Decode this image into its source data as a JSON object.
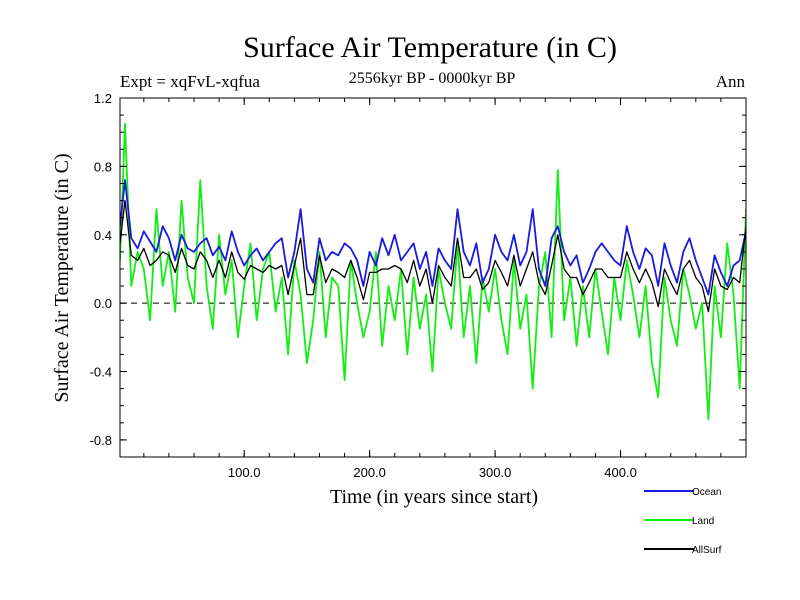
{
  "chart_data": {
    "type": "line",
    "title": "Surface Air Temperature (in C)",
    "subtitle": "2556kyr BP - 0000kyr BP",
    "left_label": "Expt = xqFvL-xqfua",
    "right_label": "Ann",
    "xlabel": "Time (in years since start)",
    "ylabel": "Surface Air Temperature (in C)",
    "xlim": [
      1,
      500
    ],
    "ylim": [
      -0.9,
      1.2
    ],
    "xticks": [
      100,
      200,
      300,
      400
    ],
    "xtick_labels": [
      "100.0",
      "200.0",
      "300.0",
      "400.0"
    ],
    "yticks": [
      -0.8,
      -0.4,
      0.0,
      0.4,
      0.8,
      1.2
    ],
    "ytick_labels": [
      "-0.8",
      "-0.4",
      "0.0",
      "0.4",
      "0.8",
      "1.2"
    ],
    "reference_line": 0.0,
    "legend_position": "bottom-right",
    "series": [
      {
        "name": "Ocean",
        "color": "#1a1adc",
        "x": [
          1,
          5,
          10,
          15,
          20,
          25,
          30,
          35,
          40,
          45,
          50,
          55,
          60,
          65,
          70,
          75,
          80,
          85,
          90,
          95,
          100,
          105,
          110,
          115,
          120,
          125,
          130,
          135,
          140,
          145,
          150,
          155,
          160,
          165,
          170,
          175,
          180,
          185,
          190,
          195,
          200,
          205,
          210,
          215,
          220,
          225,
          230,
          235,
          240,
          245,
          250,
          255,
          260,
          265,
          270,
          275,
          280,
          285,
          290,
          295,
          300,
          305,
          310,
          315,
          320,
          325,
          330,
          335,
          340,
          345,
          350,
          355,
          360,
          365,
          370,
          375,
          380,
          385,
          390,
          395,
          400,
          405,
          410,
          415,
          420,
          425,
          430,
          435,
          440,
          445,
          450,
          455,
          460,
          465,
          470,
          475,
          480,
          485,
          490,
          495,
          500
        ],
        "values": [
          0.45,
          0.72,
          0.38,
          0.32,
          0.42,
          0.36,
          0.3,
          0.45,
          0.38,
          0.25,
          0.4,
          0.32,
          0.3,
          0.35,
          0.38,
          0.28,
          0.33,
          0.25,
          0.42,
          0.3,
          0.22,
          0.28,
          0.32,
          0.25,
          0.3,
          0.35,
          0.38,
          0.15,
          0.3,
          0.55,
          0.2,
          0.12,
          0.38,
          0.25,
          0.3,
          0.28,
          0.35,
          0.32,
          0.25,
          0.1,
          0.3,
          0.22,
          0.38,
          0.28,
          0.4,
          0.25,
          0.3,
          0.35,
          0.2,
          0.3,
          0.1,
          0.32,
          0.25,
          0.2,
          0.55,
          0.3,
          0.22,
          0.35,
          0.12,
          0.2,
          0.4,
          0.3,
          0.25,
          0.4,
          0.22,
          0.3,
          0.55,
          0.2,
          0.1,
          0.38,
          0.45,
          0.3,
          0.22,
          0.28,
          0.12,
          0.2,
          0.3,
          0.35,
          0.3,
          0.25,
          0.22,
          0.45,
          0.3,
          0.2,
          0.32,
          0.28,
          0.1,
          0.35,
          0.22,
          0.12,
          0.3,
          0.38,
          0.25,
          0.15,
          0.05,
          0.28,
          0.18,
          0.1,
          0.22,
          0.25,
          0.42
        ]
      },
      {
        "name": "Land",
        "color": "#11ee11",
        "x": [
          1,
          5,
          10,
          15,
          20,
          25,
          30,
          35,
          40,
          45,
          50,
          55,
          60,
          65,
          70,
          75,
          80,
          85,
          90,
          95,
          100,
          105,
          110,
          115,
          120,
          125,
          130,
          135,
          140,
          145,
          150,
          155,
          160,
          165,
          170,
          175,
          180,
          185,
          190,
          195,
          200,
          205,
          210,
          215,
          220,
          225,
          230,
          235,
          240,
          245,
          250,
          255,
          260,
          265,
          270,
          275,
          280,
          285,
          290,
          295,
          300,
          305,
          310,
          315,
          320,
          325,
          330,
          335,
          340,
          345,
          350,
          355,
          360,
          365,
          370,
          375,
          380,
          385,
          390,
          395,
          400,
          405,
          410,
          415,
          420,
          425,
          430,
          435,
          440,
          445,
          450,
          455,
          460,
          465,
          470,
          475,
          480,
          485,
          490,
          495,
          500
        ],
        "values": [
          0.25,
          1.05,
          0.1,
          0.3,
          0.2,
          -0.1,
          0.55,
          0.1,
          0.3,
          -0.05,
          0.6,
          0.15,
          0.0,
          0.72,
          0.1,
          -0.15,
          0.4,
          0.05,
          0.25,
          -0.2,
          0.1,
          0.35,
          -0.1,
          0.2,
          0.3,
          -0.05,
          0.15,
          -0.3,
          0.25,
          0.05,
          -0.35,
          -0.1,
          0.3,
          -0.2,
          0.15,
          0.1,
          -0.45,
          0.25,
          0.0,
          -0.2,
          -0.05,
          0.3,
          -0.25,
          0.1,
          -0.1,
          0.2,
          -0.3,
          0.15,
          -0.15,
          0.05,
          -0.4,
          0.2,
          0.0,
          -0.15,
          0.35,
          -0.2,
          0.1,
          -0.35,
          0.15,
          -0.05,
          0.2,
          -0.1,
          -0.3,
          0.25,
          -0.15,
          0.05,
          -0.5,
          0.1,
          0.3,
          -0.2,
          0.78,
          -0.1,
          0.15,
          -0.25,
          0.1,
          -0.2,
          0.2,
          -0.05,
          -0.3,
          0.15,
          -0.1,
          0.25,
          0.05,
          -0.2,
          0.1,
          -0.35,
          -0.55,
          0.15,
          -0.1,
          -0.25,
          0.2,
          0.05,
          -0.15,
          0.0,
          -0.68,
          0.1,
          -0.2,
          0.35,
          0.05,
          -0.5,
          0.55
        ]
      },
      {
        "name": "AllSurf",
        "color": "#000000",
        "x": [
          1,
          5,
          10,
          15,
          20,
          25,
          30,
          35,
          40,
          45,
          50,
          55,
          60,
          65,
          70,
          75,
          80,
          85,
          90,
          95,
          100,
          105,
          110,
          115,
          120,
          125,
          130,
          135,
          140,
          145,
          150,
          155,
          160,
          165,
          170,
          175,
          180,
          185,
          190,
          195,
          200,
          205,
          210,
          215,
          220,
          225,
          230,
          235,
          240,
          245,
          250,
          255,
          260,
          265,
          270,
          275,
          280,
          285,
          290,
          295,
          300,
          305,
          310,
          315,
          320,
          325,
          330,
          335,
          340,
          345,
          350,
          355,
          360,
          365,
          370,
          375,
          380,
          385,
          390,
          395,
          400,
          405,
          410,
          415,
          420,
          425,
          430,
          435,
          440,
          445,
          450,
          455,
          460,
          465,
          470,
          475,
          480,
          485,
          490,
          495,
          500
        ],
        "values": [
          0.35,
          0.6,
          0.28,
          0.25,
          0.32,
          0.22,
          0.25,
          0.3,
          0.28,
          0.18,
          0.32,
          0.22,
          0.2,
          0.3,
          0.25,
          0.15,
          0.25,
          0.15,
          0.3,
          0.18,
          0.14,
          0.22,
          0.2,
          0.18,
          0.22,
          0.2,
          0.22,
          0.05,
          0.22,
          0.38,
          0.05,
          0.05,
          0.28,
          0.12,
          0.2,
          0.18,
          0.15,
          0.25,
          0.15,
          0.02,
          0.18,
          0.18,
          0.2,
          0.2,
          0.22,
          0.2,
          0.12,
          0.25,
          0.1,
          0.2,
          0.0,
          0.22,
          0.15,
          0.1,
          0.38,
          0.15,
          0.15,
          0.2,
          0.08,
          0.12,
          0.25,
          0.18,
          0.1,
          0.28,
          0.1,
          0.2,
          0.3,
          0.12,
          0.05,
          0.22,
          0.4,
          0.2,
          0.15,
          0.15,
          0.05,
          0.12,
          0.2,
          0.2,
          0.15,
          0.15,
          0.15,
          0.3,
          0.2,
          0.12,
          0.2,
          0.12,
          -0.02,
          0.2,
          0.12,
          0.05,
          0.2,
          0.25,
          0.15,
          0.1,
          -0.05,
          0.2,
          0.1,
          0.08,
          0.15,
          0.12,
          0.45
        ]
      }
    ]
  }
}
